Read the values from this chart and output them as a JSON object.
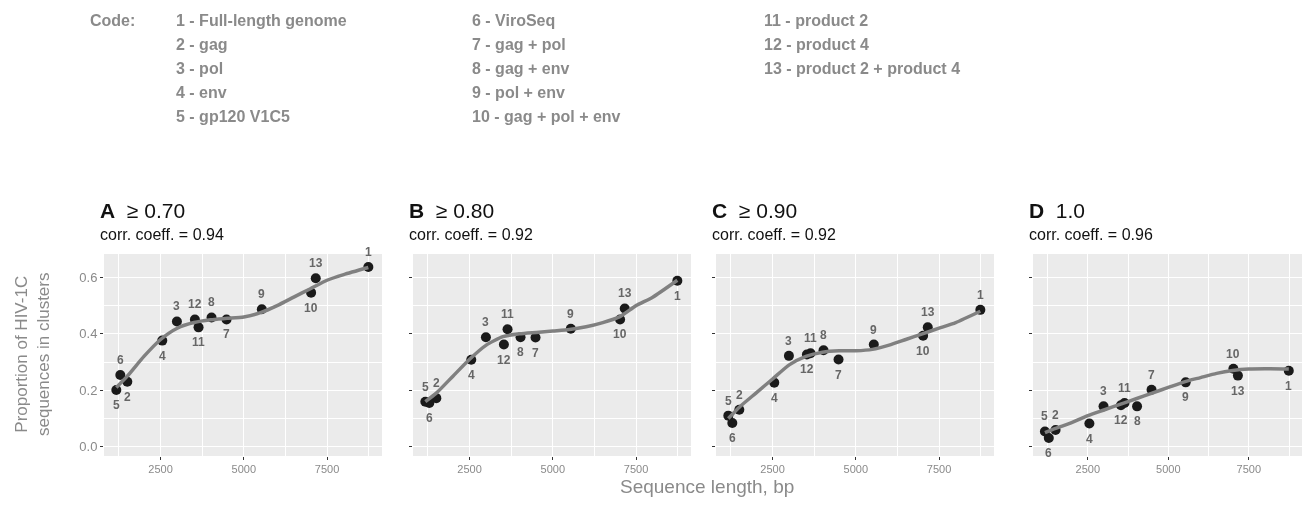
{
  "chart_data": [
    {
      "type": "scatter",
      "title": "A ≥ 0.70",
      "subtitle": "corr. coeff. = 0.94",
      "ylabel": "Proportion of HIV-1C\nsequences in clusters",
      "xlim": [
        800,
        9150
      ],
      "ylim": [
        -0.033,
        0.683
      ],
      "xticks": [
        2500,
        5000,
        7500
      ],
      "yticks": [
        {
          "value": 0,
          "label": "0.0"
        },
        {
          "value": 0.2,
          "label": "0.2"
        },
        {
          "value": 0.4,
          "label": "0.4"
        },
        {
          "value": 0.6,
          "label": "0.6"
        }
      ],
      "grid": true,
      "annotations": [
        "Code:",
        "1 - Full-length genome",
        "2 - gag",
        "3 - pol",
        "4 - env",
        "5 - gp120 V1C5",
        "6 - ViroSeq",
        "7 - gag + pol",
        "8 - gag + env",
        "9 - pol + env",
        "10 - gag + pol + env",
        "11 - product 2",
        "12 - product 4",
        "13 - product 2 + product 4",
        "Sequence length, bp",
        {
          "text": "1",
          "x": 8740,
          "y": 0.637
        },
        {
          "text": "2",
          "x": 1500,
          "y": 0.23
        },
        {
          "text": "3",
          "x": 2990,
          "y": 0.444
        },
        {
          "text": "4",
          "x": 2550,
          "y": 0.376
        },
        {
          "text": "5",
          "x": 1170,
          "y": 0.201
        },
        {
          "text": "6",
          "x": 1290,
          "y": 0.254
        },
        {
          "text": "7",
          "x": 4480,
          "y": 0.451
        },
        {
          "text": "8",
          "x": 4030,
          "y": 0.458
        },
        {
          "text": "9",
          "x": 5540,
          "y": 0.487
        },
        {
          "text": "10",
          "x": 7020,
          "y": 0.546
        },
        {
          "text": "11",
          "x": 3640,
          "y": 0.423
        },
        {
          "text": "12",
          "x": 3530,
          "y": 0.451
        },
        {
          "text": "13",
          "x": 7160,
          "y": 0.597
        }
      ],
      "series": [
        {
          "type": "scatter",
          "marker": "circle",
          "color": "#1a1a1a",
          "x": [
            8740,
            1500,
            2990,
            2550,
            1170,
            1290,
            4480,
            4030,
            5540,
            7020,
            3640,
            3530,
            7160
          ],
          "values": [
            0.637,
            0.23,
            0.444,
            0.376,
            0.201,
            0.254,
            0.451,
            0.458,
            0.487,
            0.546,
            0.423,
            0.451,
            0.597
          ]
        },
        {
          "type": "line",
          "marker": "none",
          "color": "#808080",
          "x": [
            1170,
            1500,
            2000,
            2500,
            3000,
            3500,
            4000,
            4500,
            5000,
            5500,
            6000,
            6500,
            7000,
            7500,
            8000,
            8740
          ],
          "values": [
            0.21,
            0.25,
            0.32,
            0.38,
            0.42,
            0.44,
            0.45,
            0.455,
            0.46,
            0.475,
            0.5,
            0.53,
            0.56,
            0.59,
            0.61,
            0.635
          ]
        }
      ]
    },
    {
      "type": "scatter",
      "title": "B ≥ 0.80",
      "subtitle": "corr. coeff. = 0.92",
      "tick_labels": "x",
      "xlim": [
        800,
        9150
      ],
      "ylim": [
        -0.033,
        0.683
      ],
      "xticks": [
        2500,
        5000,
        7500
      ],
      "yticks": [
        0,
        0.2,
        0.4,
        0.6
      ],
      "grid": true,
      "annotations": [
        {
          "text": "1",
          "x": 8740,
          "y": 0.588
        },
        {
          "text": "2",
          "x": 1500,
          "y": 0.172
        },
        {
          "text": "3",
          "x": 2990,
          "y": 0.388
        },
        {
          "text": "4",
          "x": 2550,
          "y": 0.308
        },
        {
          "text": "5",
          "x": 1170,
          "y": 0.159
        },
        {
          "text": "6",
          "x": 1290,
          "y": 0.155
        },
        {
          "text": "7",
          "x": 4480,
          "y": 0.387
        },
        {
          "text": "8",
          "x": 4030,
          "y": 0.388
        },
        {
          "text": "9",
          "x": 5540,
          "y": 0.418
        },
        {
          "text": "10",
          "x": 7020,
          "y": 0.451
        },
        {
          "text": "11",
          "x": 3640,
          "y": 0.416
        },
        {
          "text": "12",
          "x": 3530,
          "y": 0.362
        },
        {
          "text": "13",
          "x": 7160,
          "y": 0.49
        }
      ],
      "series": [
        {
          "type": "scatter",
          "marker": "circle",
          "color": "#1a1a1a",
          "x": [
            8740,
            1500,
            2990,
            2550,
            1170,
            1290,
            4480,
            4030,
            5540,
            7020,
            3640,
            3530,
            7160
          ],
          "values": [
            0.588,
            0.172,
            0.388,
            0.308,
            0.159,
            0.155,
            0.387,
            0.388,
            0.418,
            0.451,
            0.416,
            0.362,
            0.49
          ]
        },
        {
          "type": "line",
          "marker": "none",
          "color": "#808080",
          "x": [
            1170,
            1500,
            2000,
            2500,
            3000,
            3500,
            4000,
            4500,
            5000,
            5500,
            6000,
            6500,
            7000,
            7500,
            8000,
            8740
          ],
          "values": [
            0.16,
            0.19,
            0.25,
            0.31,
            0.36,
            0.39,
            0.4,
            0.405,
            0.41,
            0.415,
            0.425,
            0.44,
            0.46,
            0.5,
            0.53,
            0.59
          ]
        }
      ]
    },
    {
      "type": "scatter",
      "title": "C ≥ 0.90",
      "subtitle": "corr. coeff. = 0.92",
      "tick_labels": "x",
      "xlim": [
        800,
        9150
      ],
      "ylim": [
        -0.033,
        0.683
      ],
      "xticks": [
        2500,
        5000,
        7500
      ],
      "yticks": [
        0,
        0.2,
        0.4,
        0.6
      ],
      "grid": true,
      "annotations": [
        {
          "text": "1",
          "x": 8740,
          "y": 0.485
        },
        {
          "text": "2",
          "x": 1500,
          "y": 0.131
        },
        {
          "text": "3",
          "x": 2990,
          "y": 0.322
        },
        {
          "text": "4",
          "x": 2550,
          "y": 0.227
        },
        {
          "text": "5",
          "x": 1170,
          "y": 0.11
        },
        {
          "text": "6",
          "x": 1290,
          "y": 0.084
        },
        {
          "text": "7",
          "x": 4480,
          "y": 0.309
        },
        {
          "text": "8",
          "x": 4030,
          "y": 0.342
        },
        {
          "text": "9",
          "x": 5540,
          "y": 0.362
        },
        {
          "text": "10",
          "x": 7020,
          "y": 0.393
        },
        {
          "text": "11",
          "x": 3640,
          "y": 0.331
        },
        {
          "text": "12",
          "x": 3530,
          "y": 0.327
        },
        {
          "text": "13",
          "x": 7160,
          "y": 0.423
        }
      ],
      "series": [
        {
          "type": "scatter",
          "marker": "circle",
          "color": "#1a1a1a",
          "x": [
            8740,
            1500,
            2990,
            2550,
            1170,
            1290,
            4480,
            4030,
            5540,
            7020,
            3640,
            3530,
            7160
          ],
          "values": [
            0.485,
            0.131,
            0.322,
            0.227,
            0.11,
            0.084,
            0.309,
            0.342,
            0.362,
            0.393,
            0.331,
            0.327,
            0.423
          ]
        },
        {
          "type": "line",
          "marker": "none",
          "color": "#808080",
          "x": [
            1170,
            1500,
            2000,
            2500,
            3000,
            3500,
            4000,
            4500,
            5000,
            5500,
            6000,
            6500,
            7000,
            7500,
            8000,
            8740
          ],
          "values": [
            0.1,
            0.14,
            0.19,
            0.24,
            0.29,
            0.32,
            0.335,
            0.34,
            0.34,
            0.345,
            0.36,
            0.38,
            0.4,
            0.42,
            0.44,
            0.48
          ]
        }
      ]
    },
    {
      "type": "scatter",
      "title": "D 1.0",
      "subtitle": "corr. coeff. = 0.96",
      "tick_labels": "x",
      "xlim": [
        800,
        9150
      ],
      "ylim": [
        -0.033,
        0.683
      ],
      "xticks": [
        2500,
        5000,
        7500
      ],
      "yticks": [
        0,
        0.2,
        0.4,
        0.6
      ],
      "grid": true,
      "annotations": [
        {
          "text": "1",
          "x": 8740,
          "y": 0.269
        },
        {
          "text": "2",
          "x": 1500,
          "y": 0.059
        },
        {
          "text": "3",
          "x": 2990,
          "y": 0.143
        },
        {
          "text": "4",
          "x": 2550,
          "y": 0.082
        },
        {
          "text": "5",
          "x": 1170,
          "y": 0.054
        },
        {
          "text": "6",
          "x": 1290,
          "y": 0.031
        },
        {
          "text": "7",
          "x": 4480,
          "y": 0.202
        },
        {
          "text": "8",
          "x": 4030,
          "y": 0.143
        },
        {
          "text": "9",
          "x": 5540,
          "y": 0.228
        },
        {
          "text": "10",
          "x": 7020,
          "y": 0.276
        },
        {
          "text": "11",
          "x": 3640,
          "y": 0.155
        },
        {
          "text": "12",
          "x": 3530,
          "y": 0.147
        },
        {
          "text": "13",
          "x": 7160,
          "y": 0.252
        }
      ],
      "series": [
        {
          "type": "scatter",
          "marker": "circle",
          "color": "#1a1a1a",
          "x": [
            8740,
            1500,
            2990,
            2550,
            1170,
            1290,
            4480,
            4030,
            5540,
            7020,
            3640,
            3530,
            7160
          ],
          "values": [
            0.269,
            0.059,
            0.143,
            0.082,
            0.054,
            0.031,
            0.202,
            0.143,
            0.228,
            0.276,
            0.155,
            0.147,
            0.252
          ]
        },
        {
          "type": "line",
          "marker": "none",
          "color": "#808080",
          "x": [
            1170,
            1500,
            2000,
            2500,
            3000,
            3500,
            4000,
            4500,
            5000,
            5500,
            6000,
            6500,
            7000,
            7500,
            8000,
            8740
          ],
          "values": [
            0.05,
            0.065,
            0.085,
            0.11,
            0.13,
            0.15,
            0.17,
            0.19,
            0.21,
            0.23,
            0.245,
            0.26,
            0.27,
            0.275,
            0.276,
            0.275
          ]
        }
      ]
    }
  ]
}
